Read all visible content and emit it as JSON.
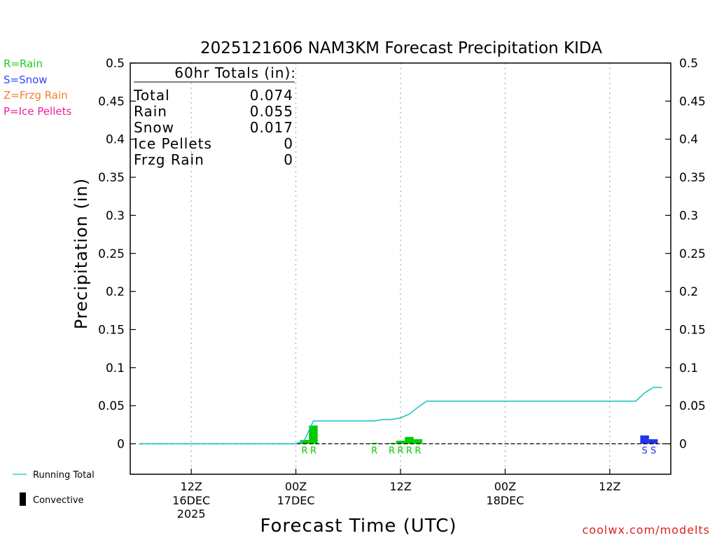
{
  "chart_data": {
    "type": "bar",
    "title": "2025121606 NAM3KM Forecast Precipitation KIDA",
    "xlabel": "Forecast Time (UTC)",
    "ylabel": "Precipitation (in)",
    "ylim": [
      -0.04,
      0.5
    ],
    "yticks": [
      "0.5",
      "0.45",
      "0.4",
      "0.35",
      "0.3",
      "0.25",
      "0.2",
      "0.15",
      "0.1",
      "0.05",
      "0"
    ],
    "ytick_values": [
      0.5,
      0.45,
      0.4,
      0.35,
      0.3,
      0.25,
      0.2,
      0.15,
      0.1,
      0.05,
      0
    ],
    "xlim_hours": [
      -1,
      61
    ],
    "xticks": [
      {
        "hour": 6,
        "line1": "12Z",
        "line2": "16DEC",
        "line3": "2025"
      },
      {
        "hour": 18,
        "line1": "00Z",
        "line2": "17DEC",
        "line3": ""
      },
      {
        "hour": 30,
        "line1": "12Z",
        "line2": "",
        "line3": ""
      },
      {
        "hour": 42,
        "line1": "00Z",
        "line2": "18DEC",
        "line3": ""
      },
      {
        "hour": 54,
        "line1": "12Z",
        "line2": "",
        "line3": ""
      }
    ],
    "legend": [
      {
        "label": "R=Rain",
        "color": "#22cc22"
      },
      {
        "label": "S=Snow",
        "color": "#3344ff"
      },
      {
        "label": "Z=Frzg Rain",
        "color": "#f08030"
      },
      {
        "label": "P=Ice Pellets",
        "color": "#ee2299"
      }
    ],
    "series_legend": {
      "running_total": "Running Total",
      "convective": "Convective"
    },
    "colors": {
      "rain": "#00cc00",
      "snow": "#2233ee",
      "running_total": "#11c4c4",
      "convective": "#000000"
    },
    "bars": [
      {
        "hour": 19,
        "value": 0.005,
        "type": "R"
      },
      {
        "hour": 20,
        "value": 0.024,
        "type": "R"
      },
      {
        "hour": 27,
        "value": 0.001,
        "type": "R"
      },
      {
        "hour": 29,
        "value": 0.001,
        "type": "R"
      },
      {
        "hour": 30,
        "value": 0.004,
        "type": "R"
      },
      {
        "hour": 31,
        "value": 0.009,
        "type": "R"
      },
      {
        "hour": 32,
        "value": 0.006,
        "type": "R"
      },
      {
        "hour": 58,
        "value": 0.011,
        "type": "S"
      },
      {
        "hour": 59,
        "value": 0.006,
        "type": "S"
      }
    ],
    "running_total": {
      "hours": [
        0,
        18,
        19,
        20,
        21,
        22,
        23,
        24,
        25,
        26,
        27,
        28,
        29,
        30,
        31,
        32,
        33,
        34,
        35,
        36,
        37,
        38,
        39,
        40,
        41,
        42,
        43,
        44,
        45,
        46,
        47,
        48,
        49,
        50,
        51,
        52,
        53,
        54,
        55,
        56,
        57,
        58,
        59,
        60
      ],
      "values": [
        0,
        0,
        0.005,
        0.03,
        0.03,
        0.03,
        0.03,
        0.03,
        0.03,
        0.03,
        0.03,
        0.032,
        0.032,
        0.034,
        0.039,
        0.048,
        0.056,
        0.056,
        0.056,
        0.056,
        0.056,
        0.056,
        0.056,
        0.056,
        0.056,
        0.056,
        0.056,
        0.056,
        0.056,
        0.056,
        0.056,
        0.056,
        0.056,
        0.056,
        0.056,
        0.056,
        0.056,
        0.056,
        0.056,
        0.056,
        0.056,
        0.067,
        0.074,
        0.074
      ]
    },
    "totals": {
      "header": "60hr Totals (in):",
      "rows": [
        {
          "label": "Total",
          "value": "0.074"
        },
        {
          "label": "Rain",
          "value": "0.055"
        },
        {
          "label": "Snow",
          "value": "0.017"
        },
        {
          "label": "Ice Pellets",
          "value": "0"
        },
        {
          "label": "Frzg Rain",
          "value": "0"
        }
      ]
    },
    "credit": "coolwx.com/modelts"
  }
}
